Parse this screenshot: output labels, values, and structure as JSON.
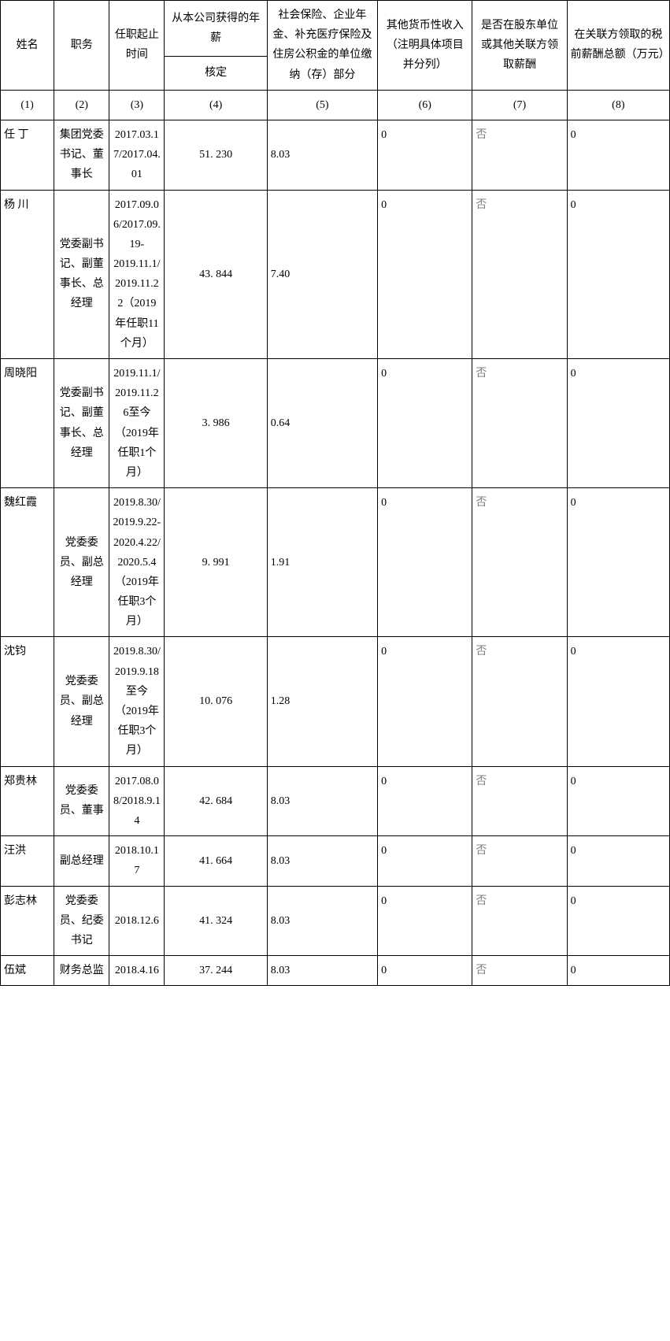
{
  "header": {
    "c1": "姓名",
    "c2": "职务",
    "c3": "任职起止时间",
    "c4_top": "从本公司获得的年薪",
    "c4_sub": "核定",
    "c5": "社会保险、企业年金、补充医疗保险及住房公积金的单位缴纳（存）部分",
    "c6": "其他货币性收入（注明具体项目并分列）",
    "c7": "是否在股东单位或其他关联方领取薪酬",
    "c8": "在关联方领取的税前薪酬总额（万元）"
  },
  "colnums": {
    "c1": "(1)",
    "c2": "(2)",
    "c3": "(3)",
    "c4": "(4)",
    "c5": "(5)",
    "c6": "(6)",
    "c7": "(7)",
    "c8": "(8)"
  },
  "rows": [
    {
      "name": "任  丁",
      "duty": "集团党委书记、董事长",
      "period": "2017.03.17/2017.04.01",
      "salary": "51. 230",
      "insurance": "8.03",
      "other": "0",
      "flag": "否",
      "related": "0"
    },
    {
      "name": "杨    川",
      "duty": "党委副书记、副董事长、总经理",
      "period": "2017.09.06/2017.09.19-2019.11.1/2019.11.22（2019年任职11个月）",
      "salary": "43. 844",
      "insurance": "7.40",
      "other": "0",
      "flag": "否",
      "related": "0"
    },
    {
      "name": "周晓阳",
      "duty": "党委副书记、副董事长、总经理",
      "period": "2019.11.1/2019.11.26至今（2019年任职1个月）",
      "salary": "3. 986",
      "insurance": "0.64",
      "other": "0",
      "flag": "否",
      "related": "0"
    },
    {
      "name": "魏红霞",
      "duty": "党委委员、副总经理",
      "period": "2019.8.30/2019.9.22-2020.4.22/2020.5.4（2019年任职3个月）",
      "salary": "9. 991",
      "insurance": "1.91",
      "other": "0",
      "flag": "否",
      "related": "0"
    },
    {
      "name": "沈钧",
      "duty": "党委委员、副总经理",
      "period": "2019.8.30/2019.9.18至今（2019年任职3个月）",
      "salary": "10. 076",
      "insurance": "1.28",
      "other": "0",
      "flag": "否",
      "related": "0"
    },
    {
      "name": "郑贵林",
      "duty": "党委委员、董事",
      "period": "2017.08.08/2018.9.14",
      "salary": "42. 684",
      "insurance": "8.03",
      "other": "0",
      "flag": "否",
      "related": "0"
    },
    {
      "name": "汪洪",
      "duty": "副总经理",
      "period": "2018.10.17",
      "salary": "41. 664",
      "insurance": "8.03",
      "other": "0",
      "flag": "否",
      "related": "0"
    },
    {
      "name": "彭志林",
      "duty": "党委委员、纪委书记",
      "period": "2018.12.6",
      "salary": "41. 324",
      "insurance": "8.03",
      "other": "0",
      "flag": "否",
      "related": "0"
    },
    {
      "name": "伍斌",
      "duty": "财务总监",
      "period": "2018.4.16",
      "salary": "37. 244",
      "insurance": "8.03",
      "other": "0",
      "flag": "否",
      "related": "0"
    }
  ]
}
